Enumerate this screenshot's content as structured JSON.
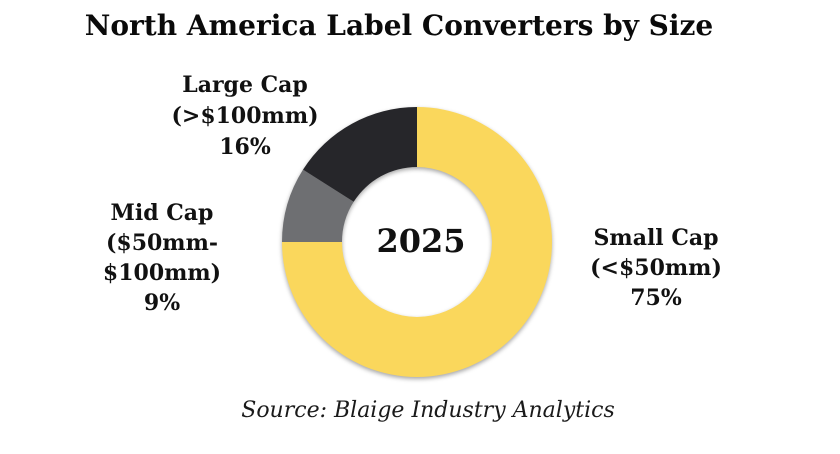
{
  "title": "North America Label Converters by Size",
  "center_label": "2025",
  "source": "Source: Blaige Industry Analytics",
  "labels": {
    "large_cap": {
      "lines": [
        "Large Cap",
        "(>$100mm)",
        "16%"
      ]
    },
    "mid_cap": {
      "lines": [
        "Mid Cap",
        "($50mm-",
        "$100mm)",
        "9%"
      ]
    },
    "small_cap": {
      "lines": [
        "Small Cap",
        "(<$50mm)",
        "75%"
      ]
    }
  },
  "chart_data": {
    "type": "pie",
    "subtype": "donut",
    "title": "North America Label Converters by Size",
    "center_text": "2025",
    "source": "Source: Blaige Industry Analytics",
    "start_angle_deg": 0,
    "direction": "clockwise",
    "slices": [
      {
        "id": "small-cap",
        "label": "Small Cap (<$50mm)",
        "value_pct": 75,
        "color": "#FAD75C"
      },
      {
        "id": "mid-cap",
        "label": "Mid Cap ($50mm-$100mm)",
        "value_pct": 9,
        "color": "#6E6F72"
      },
      {
        "id": "large-cap",
        "label": "Large Cap (>$100mm)",
        "value_pct": 16,
        "color": "#26262A"
      }
    ]
  }
}
